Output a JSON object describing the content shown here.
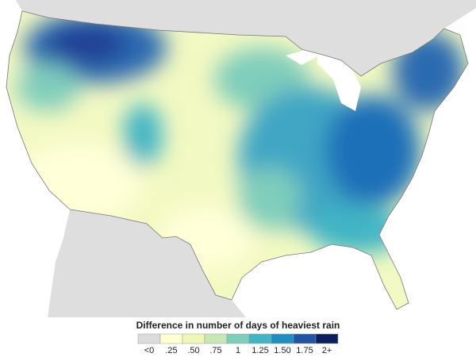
{
  "legend": {
    "title": "Difference in number of days of heaviest rain",
    "items": [
      {
        "label": "<0",
        "color": "#dcdcdc"
      },
      {
        "label": ".25",
        "color": "#ffffd0"
      },
      {
        "label": ".50",
        "color": "#eef7b4"
      },
      {
        "label": ".75",
        "color": "#c5e8b5"
      },
      {
        "label": "1",
        "color": "#7fcdbb"
      },
      {
        "label": "1.25",
        "color": "#40b5c4"
      },
      {
        "label": "1.50",
        "color": "#1d8fc0"
      },
      {
        "label": "1.75",
        "color": "#2254a6"
      },
      {
        "label": "2+",
        "color": "#0b1f5e"
      }
    ]
  }
}
